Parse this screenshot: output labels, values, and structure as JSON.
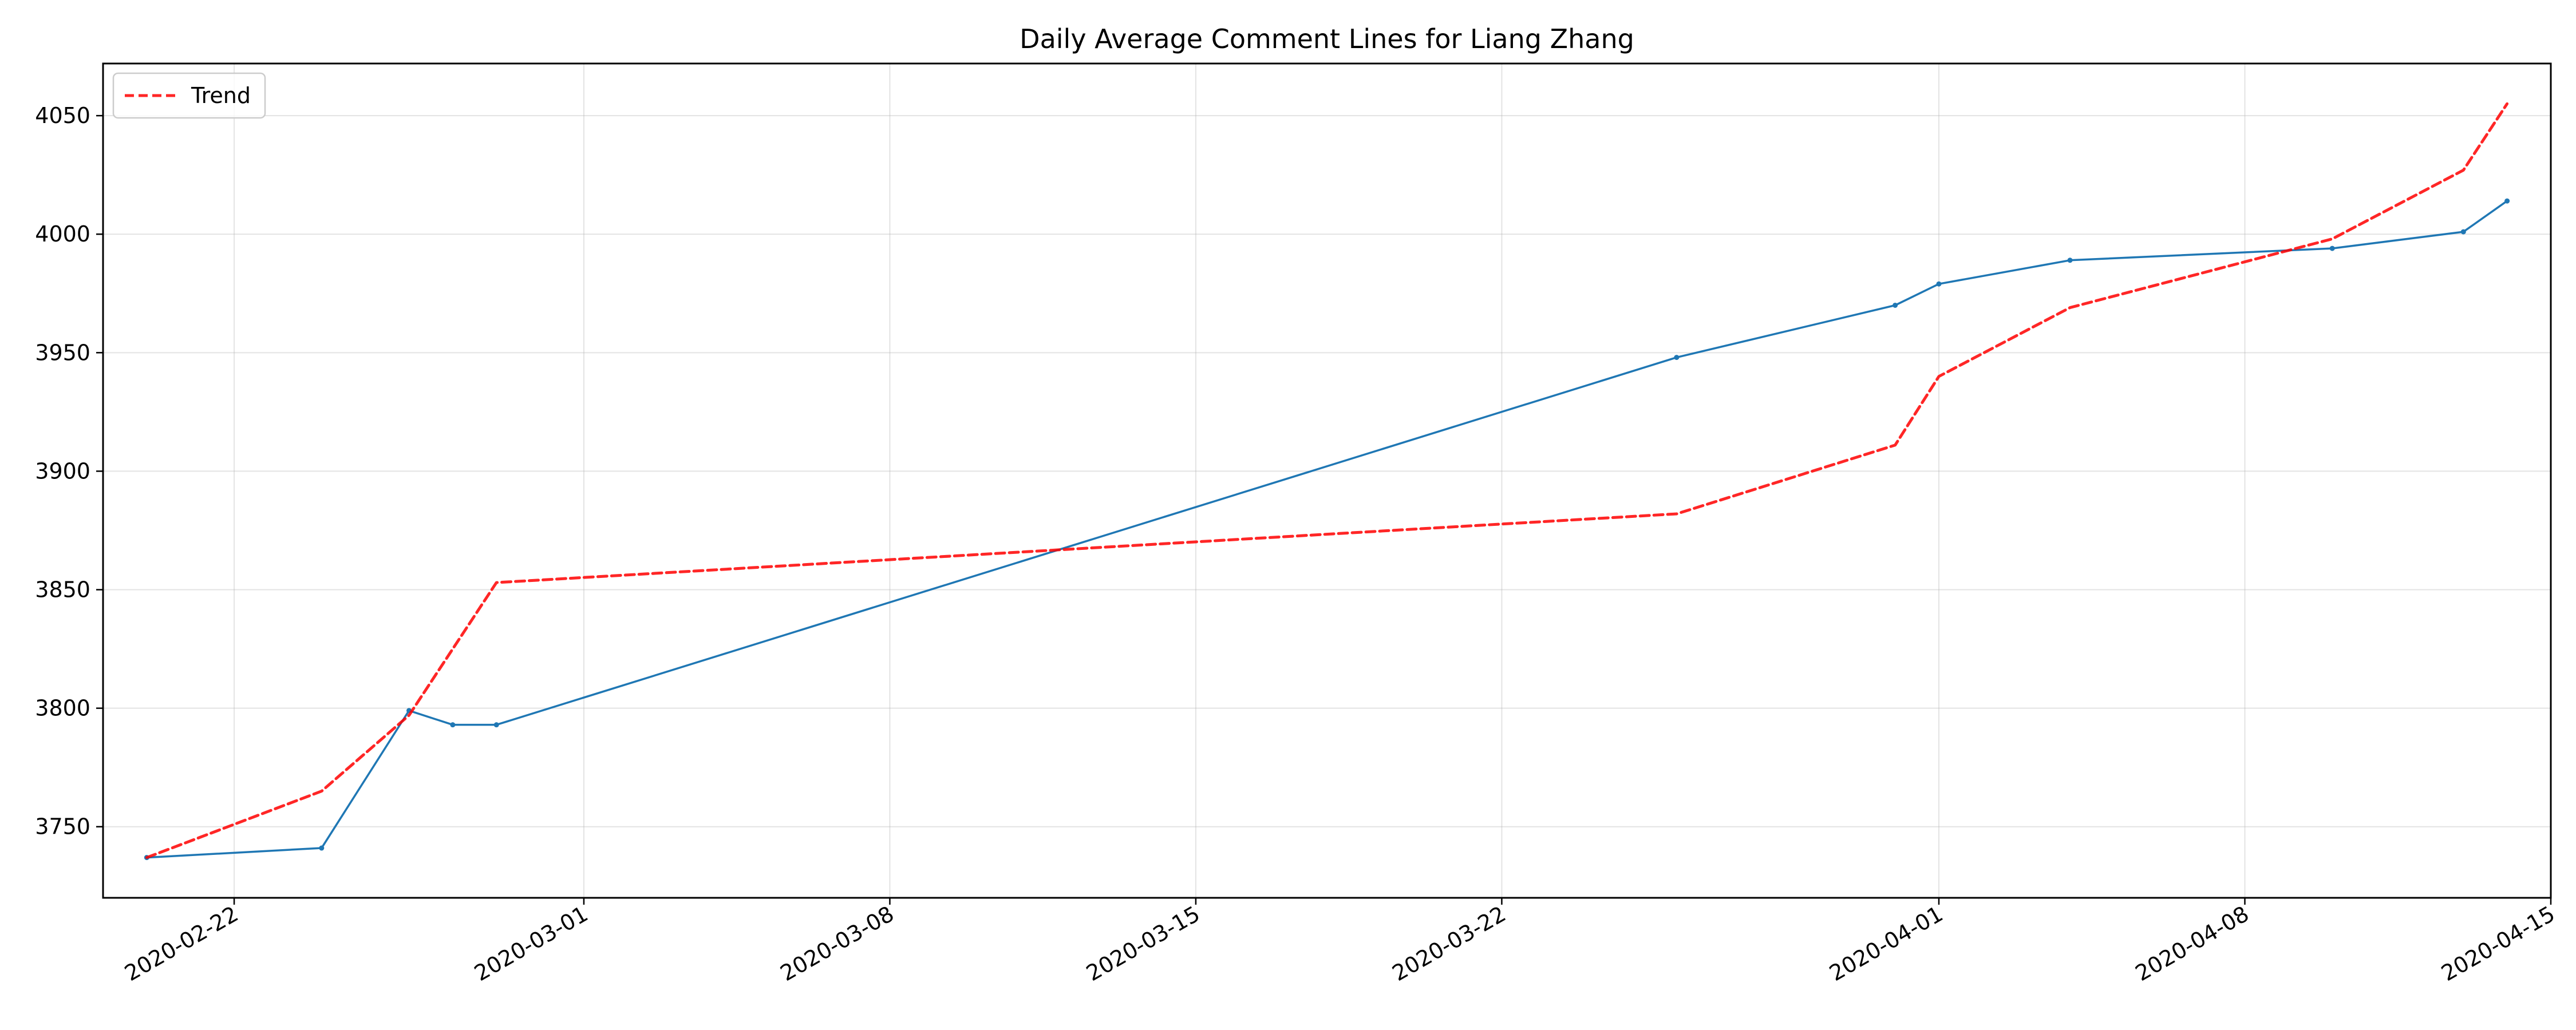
{
  "chart_data": {
    "type": "line",
    "title": "Daily Average Comment Lines for Liang Zhang",
    "xlabel": "",
    "ylabel": "",
    "x_type": "date",
    "xlim": [
      "2020-02-19",
      "2020-04-15"
    ],
    "ylim": [
      3720,
      4072
    ],
    "x_ticks": [
      "2020-02-22",
      "2020-03-01",
      "2020-03-08",
      "2020-03-15",
      "2020-03-22",
      "2020-04-01",
      "2020-04-08",
      "2020-04-15"
    ],
    "y_ticks": [
      3750,
      3800,
      3850,
      3900,
      3950,
      4000,
      4050
    ],
    "grid": true,
    "legend": {
      "position": "top-left",
      "entries": [
        "Trend"
      ]
    },
    "series": [
      {
        "color": "#1f77b4",
        "style": "solid",
        "marker": "dot",
        "x": [
          "2020-02-20",
          "2020-02-24",
          "2020-02-26",
          "2020-02-27",
          "2020-02-28",
          "2020-03-26",
          "2020-03-31",
          "2020-04-01",
          "2020-04-04",
          "2020-04-10",
          "2020-04-13",
          "2020-04-14"
        ],
        "values": [
          3737,
          3741,
          3799,
          3793,
          3793,
          3948,
          3970,
          3979,
          3989,
          3994,
          4001,
          4014
        ]
      },
      {
        "name": "Trend",
        "color": "#ff0000",
        "style": "dashed",
        "x": [
          "2020-02-20",
          "2020-02-24",
          "2020-02-26",
          "2020-02-28",
          "2020-03-26",
          "2020-03-31",
          "2020-04-01",
          "2020-04-04",
          "2020-04-10",
          "2020-04-13",
          "2020-04-14"
        ],
        "values": [
          3737,
          3765,
          3797,
          3853,
          3882,
          3911,
          3940,
          3969,
          3998,
          4027,
          4055
        ]
      }
    ]
  }
}
